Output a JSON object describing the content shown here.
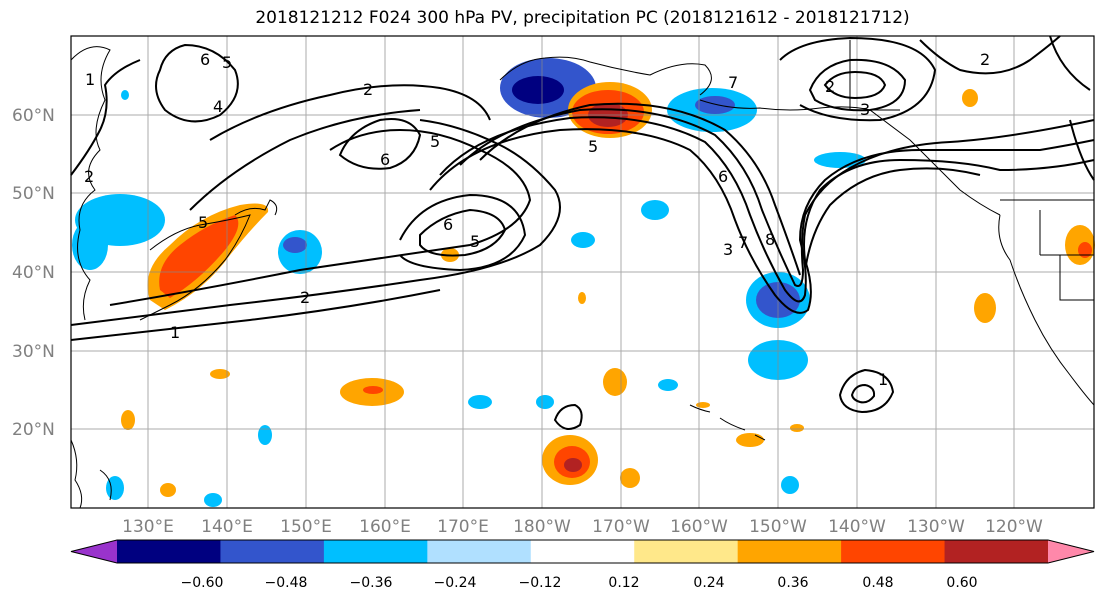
{
  "title": "2018121212 F024 300 hPa PV, precipitation PC (2018121612 - 2018121712)",
  "lat_labels": [
    "60°N",
    "50°N",
    "40°N",
    "30°N",
    "20°N"
  ],
  "lon_labels": [
    "130°E",
    "140°E",
    "150°E",
    "160°E",
    "170°E",
    "180°W",
    "170°W",
    "160°W",
    "150°W",
    "140°W",
    "130°W",
    "120°W"
  ],
  "contour_labels": [
    "1",
    "2",
    "2",
    "2",
    "3",
    "4",
    "5",
    "5",
    "5",
    "6",
    "6",
    "6",
    "7",
    "7",
    "8",
    "1",
    "1",
    "2",
    "5",
    "6",
    "3",
    "5",
    "2"
  ],
  "colorbar": {
    "ticks": [
      "−0.60",
      "−0.48",
      "−0.36",
      "−0.24",
      "−0.12",
      "0.12",
      "0.24",
      "0.36",
      "0.48",
      "0.60"
    ],
    "colors": [
      "#9933cc",
      "#000080",
      "#3355cc",
      "#00bfff",
      "#b0e0ff",
      "#ffffff",
      "#ffe88a",
      "#ffa500",
      "#ff4500",
      "#b22222",
      "#ff88aa"
    ]
  }
}
